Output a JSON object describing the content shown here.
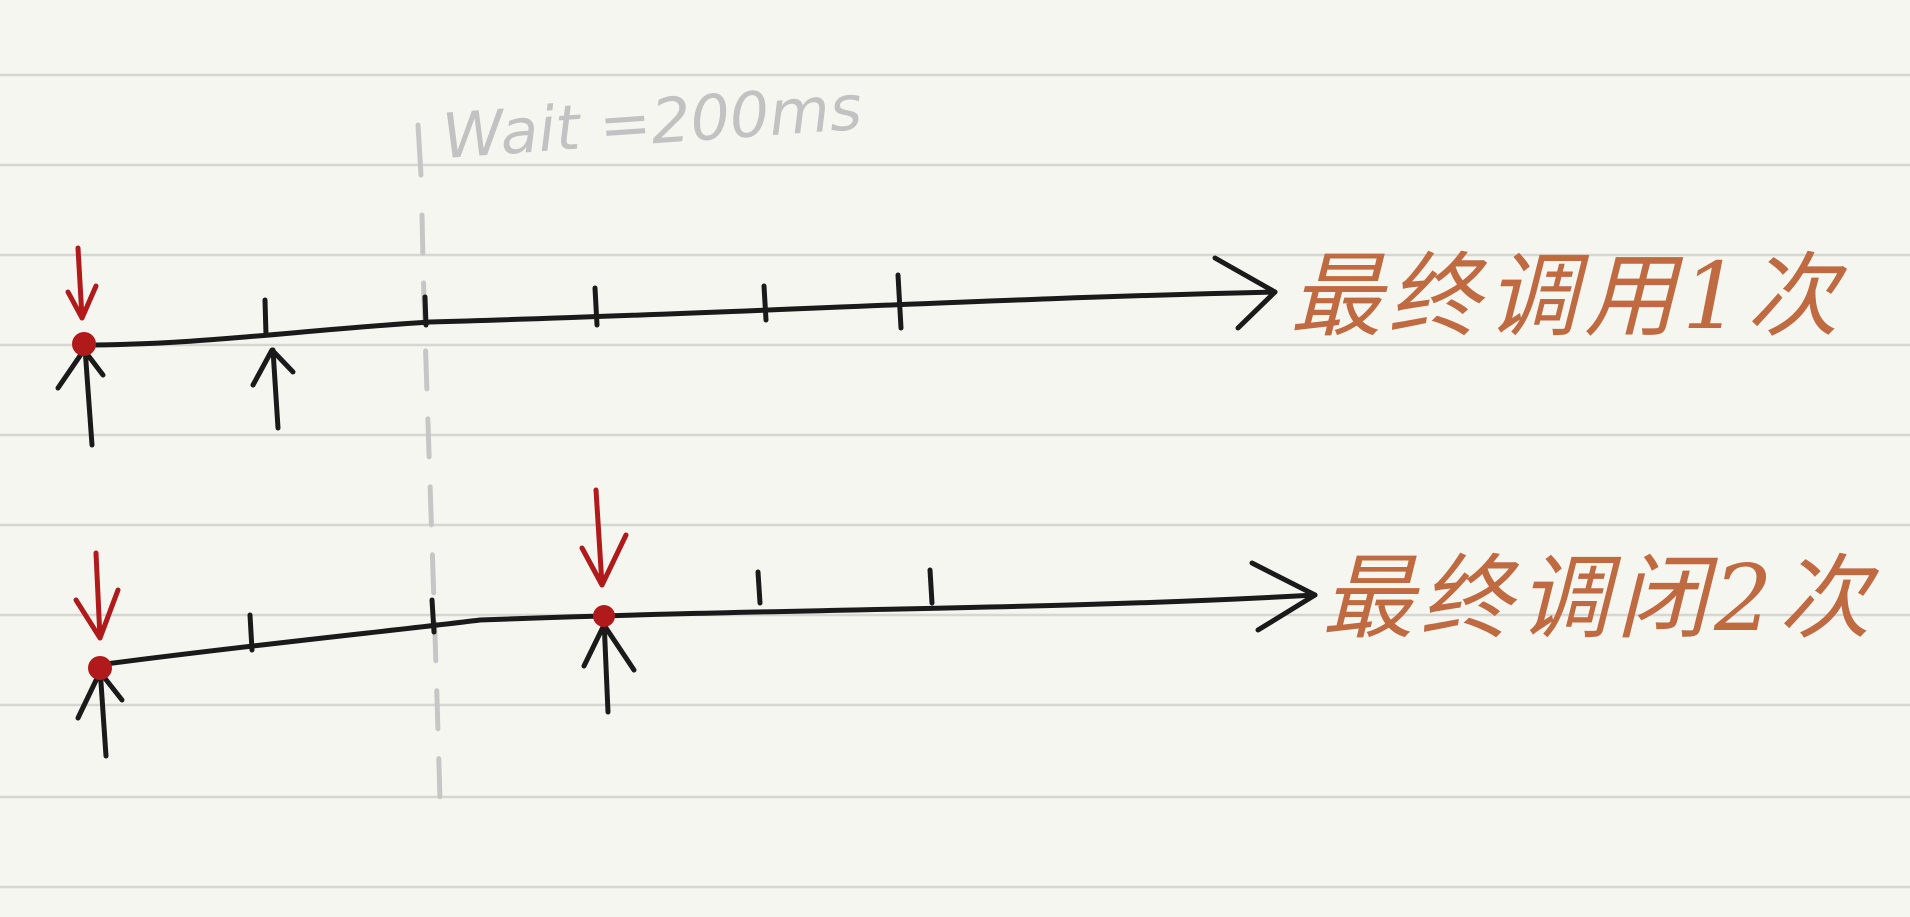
{
  "diagram": {
    "wait_annotation": "Wait =200ms",
    "timelines": [
      {
        "label": "最终调用1次",
        "invocations": 1
      },
      {
        "label": "最终调闭2次",
        "invocations": 2
      }
    ],
    "colors": {
      "paper": "#f6f6f1",
      "ruled_line": "#d6d6d2",
      "ink": "#1a1a1a",
      "red_mark": "#b01a1a",
      "orange_text": "#bf6a40",
      "wait_gray": "#c2c2c2"
    }
  }
}
